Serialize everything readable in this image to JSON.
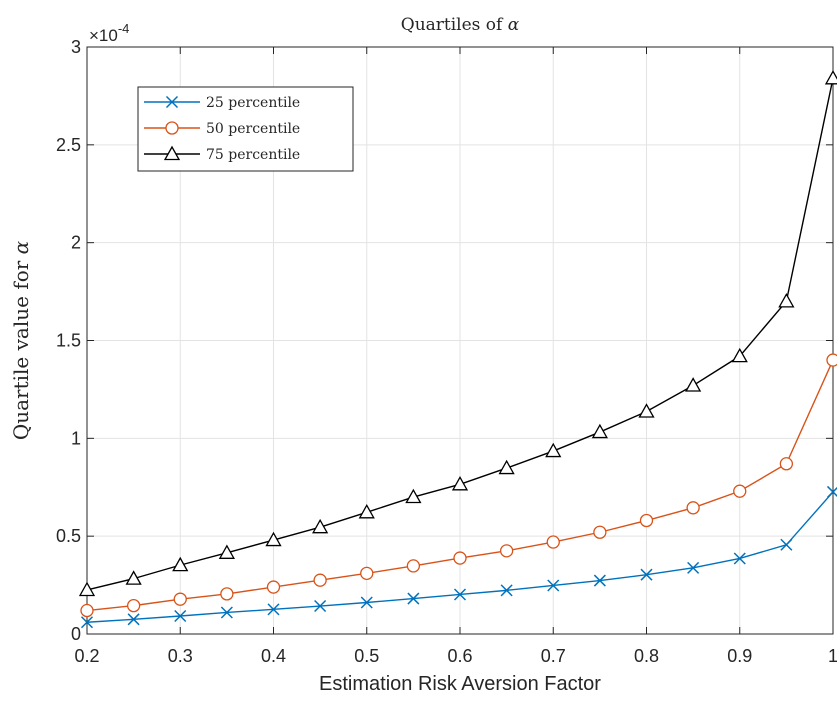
{
  "chart_data": {
    "type": "line",
    "title_prefix": "Quartiles of ",
    "title_symbol": "α",
    "xlabel": "Estimation Risk Aversion Factor",
    "ylabel_prefix": "Quartile value for ",
    "ylabel_symbol": "α",
    "y_exponent_prefix": "×10",
    "y_exponent": "-4",
    "xlim": [
      0.2,
      1.0
    ],
    "ylim": [
      0,
      3
    ],
    "x_ticks": [
      "0.2",
      "0.3",
      "0.4",
      "0.5",
      "0.6",
      "0.7",
      "0.8",
      "0.9",
      "1"
    ],
    "y_ticks": [
      "0",
      "0.5",
      "1",
      "1.5",
      "2",
      "2.5",
      "3"
    ],
    "grid": true,
    "legend_position": "top-left",
    "x": [
      0.2,
      0.25,
      0.3,
      0.35,
      0.4,
      0.45,
      0.5,
      0.55,
      0.6,
      0.65,
      0.7,
      0.75,
      0.8,
      0.85,
      0.9,
      0.95,
      1.0
    ],
    "series": [
      {
        "name": "25 percentile",
        "color": "#0072BD",
        "marker": "x",
        "values": [
          0.06,
          0.075,
          0.092,
          0.11,
          0.126,
          0.143,
          0.161,
          0.181,
          0.202,
          0.223,
          0.248,
          0.273,
          0.303,
          0.338,
          0.386,
          0.456,
          0.726
        ]
      },
      {
        "name": "50 percentile",
        "color": "#D95319",
        "marker": "circle",
        "values": [
          0.12,
          0.145,
          0.178,
          0.205,
          0.24,
          0.275,
          0.31,
          0.348,
          0.388,
          0.425,
          0.47,
          0.52,
          0.58,
          0.645,
          0.73,
          0.87,
          1.4
        ]
      },
      {
        "name": "75 percentile",
        "color": "#000000",
        "marker": "triangle",
        "values": [
          0.225,
          0.283,
          0.352,
          0.415,
          0.48,
          0.546,
          0.622,
          0.7,
          0.765,
          0.848,
          0.935,
          1.032,
          1.137,
          1.27,
          1.42,
          1.7,
          2.84
        ]
      }
    ]
  }
}
